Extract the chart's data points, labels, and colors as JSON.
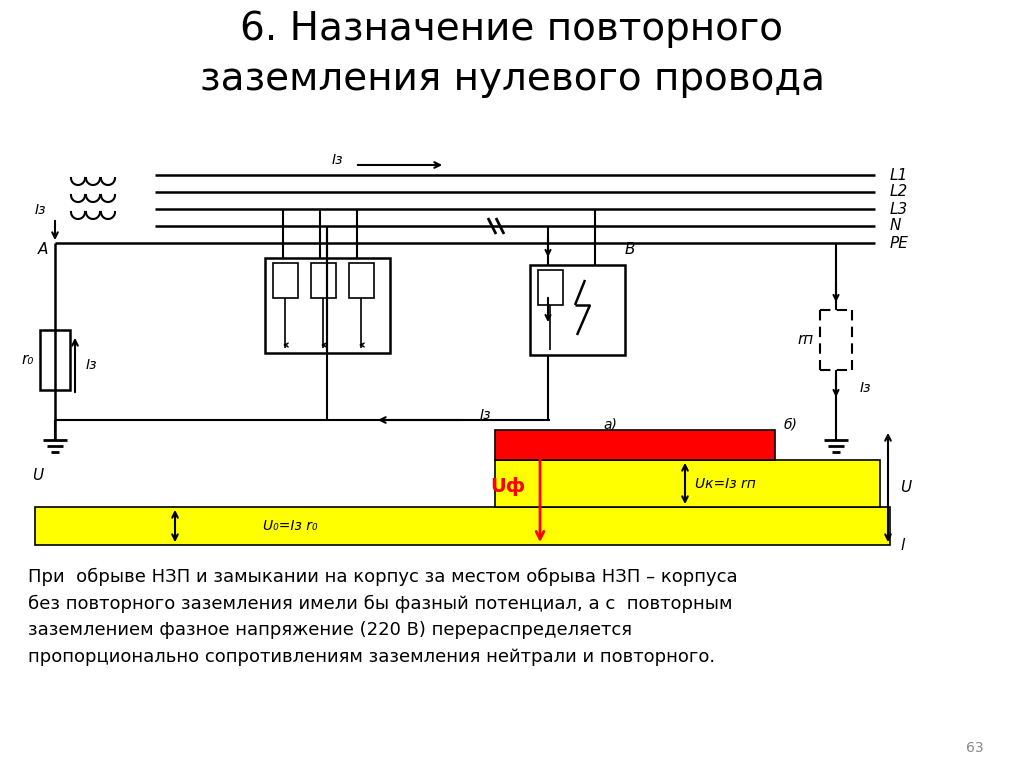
{
  "title_line1": "6. Назначение повторного",
  "title_line2": "заземления нулевого провода",
  "title_fontsize": 28,
  "body_text": "При  обрыве НЗП и замыкании на корпус за местом обрыва НЗП – корпуса\nбез повторного заземления имели бы фазный потенциал, а с  повторным\nзаземлением фазное напряжение (220 В) перераспределяется\nпропорционально сопротивлениям заземления нейтрали и повторного.",
  "page_number": "63",
  "bg_color": "#ffffff",
  "line_color": "#000000",
  "yellow_color": "#ffff00",
  "red_color": "#ff0000",
  "label_L1": "L1",
  "label_L2": "L2",
  "label_L3": "L3",
  "label_N": "N",
  "label_PE": "PE",
  "label_A": "A",
  "label_B": "B",
  "label_r0": "r₀",
  "label_rp": "rп",
  "label_Iz": "Iз",
  "label_U": "U",
  "label_Uph": "Uф",
  "label_U0": "U₀=Iз r₀",
  "label_Uk": "Uк=Iз rп",
  "label_a": "а)",
  "label_b": "б)",
  "label_l": "l"
}
